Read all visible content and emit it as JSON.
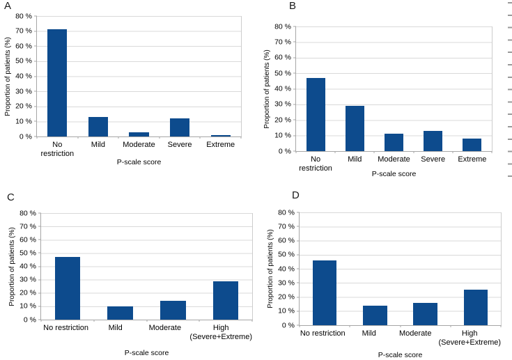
{
  "figure": {
    "background": "#ffffff",
    "bar_color": "#0d4b8d",
    "gridline_color": "#d9d9d9",
    "axis_color": "#a6a6a6",
    "edge_tick_color": "#999999"
  },
  "edge_ticks": {
    "count": 15,
    "side": "right"
  },
  "chart_data": [
    {
      "panel_label": "A",
      "type": "bar",
      "title": "",
      "xlabel": "P-scale score",
      "ylabel": "Proportion of patients (%)",
      "categories": [
        "No restriction",
        "Mild",
        "Moderate",
        "Severe",
        "Extreme"
      ],
      "values": [
        71,
        13,
        3,
        12,
        1
      ],
      "ylim": [
        0,
        80
      ],
      "ytick_step": 10,
      "ytick_suffix": " %",
      "grid": true,
      "legend": "none"
    },
    {
      "panel_label": "B",
      "type": "bar",
      "title": "",
      "xlabel": "P-scale score",
      "ylabel": "Proportion of patients (%)",
      "categories": [
        "No restriction",
        "Mild",
        "Moderate",
        "Severe",
        "Extreme"
      ],
      "values": [
        47,
        29,
        11,
        13,
        8
      ],
      "ylim": [
        0,
        80
      ],
      "ytick_step": 10,
      "ytick_suffix": " %",
      "grid": true,
      "legend": "none"
    },
    {
      "panel_label": "C",
      "type": "bar",
      "title": "",
      "xlabel": "P-scale score",
      "ylabel": "Proportion of patients (%)",
      "categories": [
        "No restriction",
        "Mild",
        "Moderate",
        "High\n(Severe+Extreme)"
      ],
      "values": [
        47,
        10,
        14,
        29
      ],
      "ylim": [
        0,
        80
      ],
      "ytick_step": 10,
      "ytick_suffix": " %",
      "grid": true,
      "legend": "none"
    },
    {
      "panel_label": "D",
      "type": "bar",
      "title": "",
      "xlabel": "P-scale score",
      "ylabel": "Proportion of patients (%)",
      "categories": [
        "No restriction",
        "Mild",
        "Moderate",
        "High\n(Severe+Extreme)"
      ],
      "values": [
        46,
        14,
        16,
        25
      ],
      "ylim": [
        0,
        80
      ],
      "ytick_step": 10,
      "ytick_suffix": " %",
      "grid": true,
      "legend": "none"
    }
  ]
}
